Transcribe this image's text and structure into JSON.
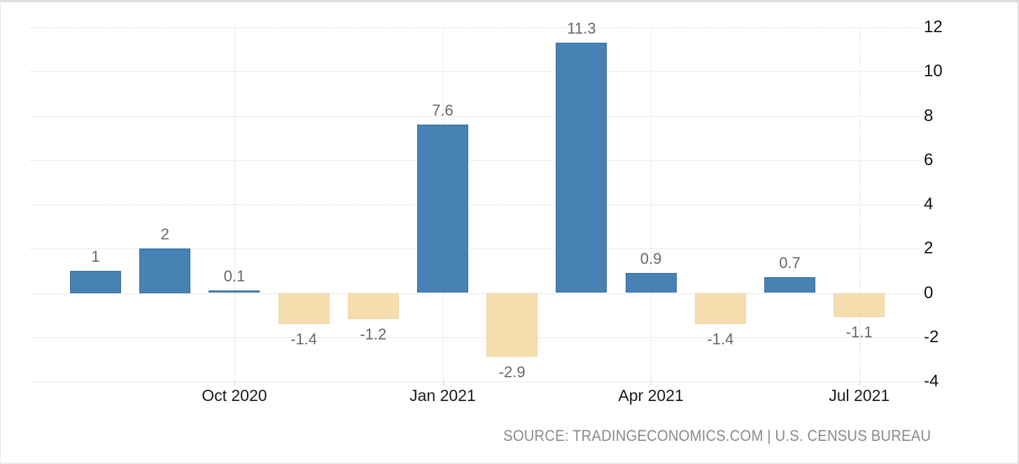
{
  "chart": {
    "source_line": "SOURCE: TRADINGECONOMICS.COM | U.S. CENSUS BUREAU"
  },
  "chart_data": {
    "type": "bar",
    "values": [
      1,
      2,
      0.1,
      -1.4,
      -1.2,
      7.6,
      -2.9,
      11.3,
      0.9,
      -1.4,
      0.7,
      -1.1
    ],
    "bar_labels": [
      "1",
      "2",
      "0.1",
      "-1.4",
      "-1.2",
      "7.6",
      "-2.9",
      "11.3",
      "0.9",
      "-1.4",
      "0.7",
      "-1.1"
    ],
    "x_tick_labels": [
      "Oct 2020",
      "Jan 2021",
      "Apr 2021",
      "Jul 2021"
    ],
    "x_tick_indices": [
      2,
      5,
      8,
      11
    ],
    "y_ticks": [
      12,
      10,
      8,
      6,
      4,
      2,
      0,
      -2,
      -4
    ],
    "ylim": [
      -4,
      12
    ],
    "grid": true,
    "legend": "none",
    "title": "",
    "xlabel": "",
    "ylabel": "",
    "positive_color": "#4682b4",
    "negative_color": "#f5ddae",
    "gridline_color": "#d8d8d8",
    "value_label_color": "#666666",
    "axis_text_color": "#111111"
  }
}
